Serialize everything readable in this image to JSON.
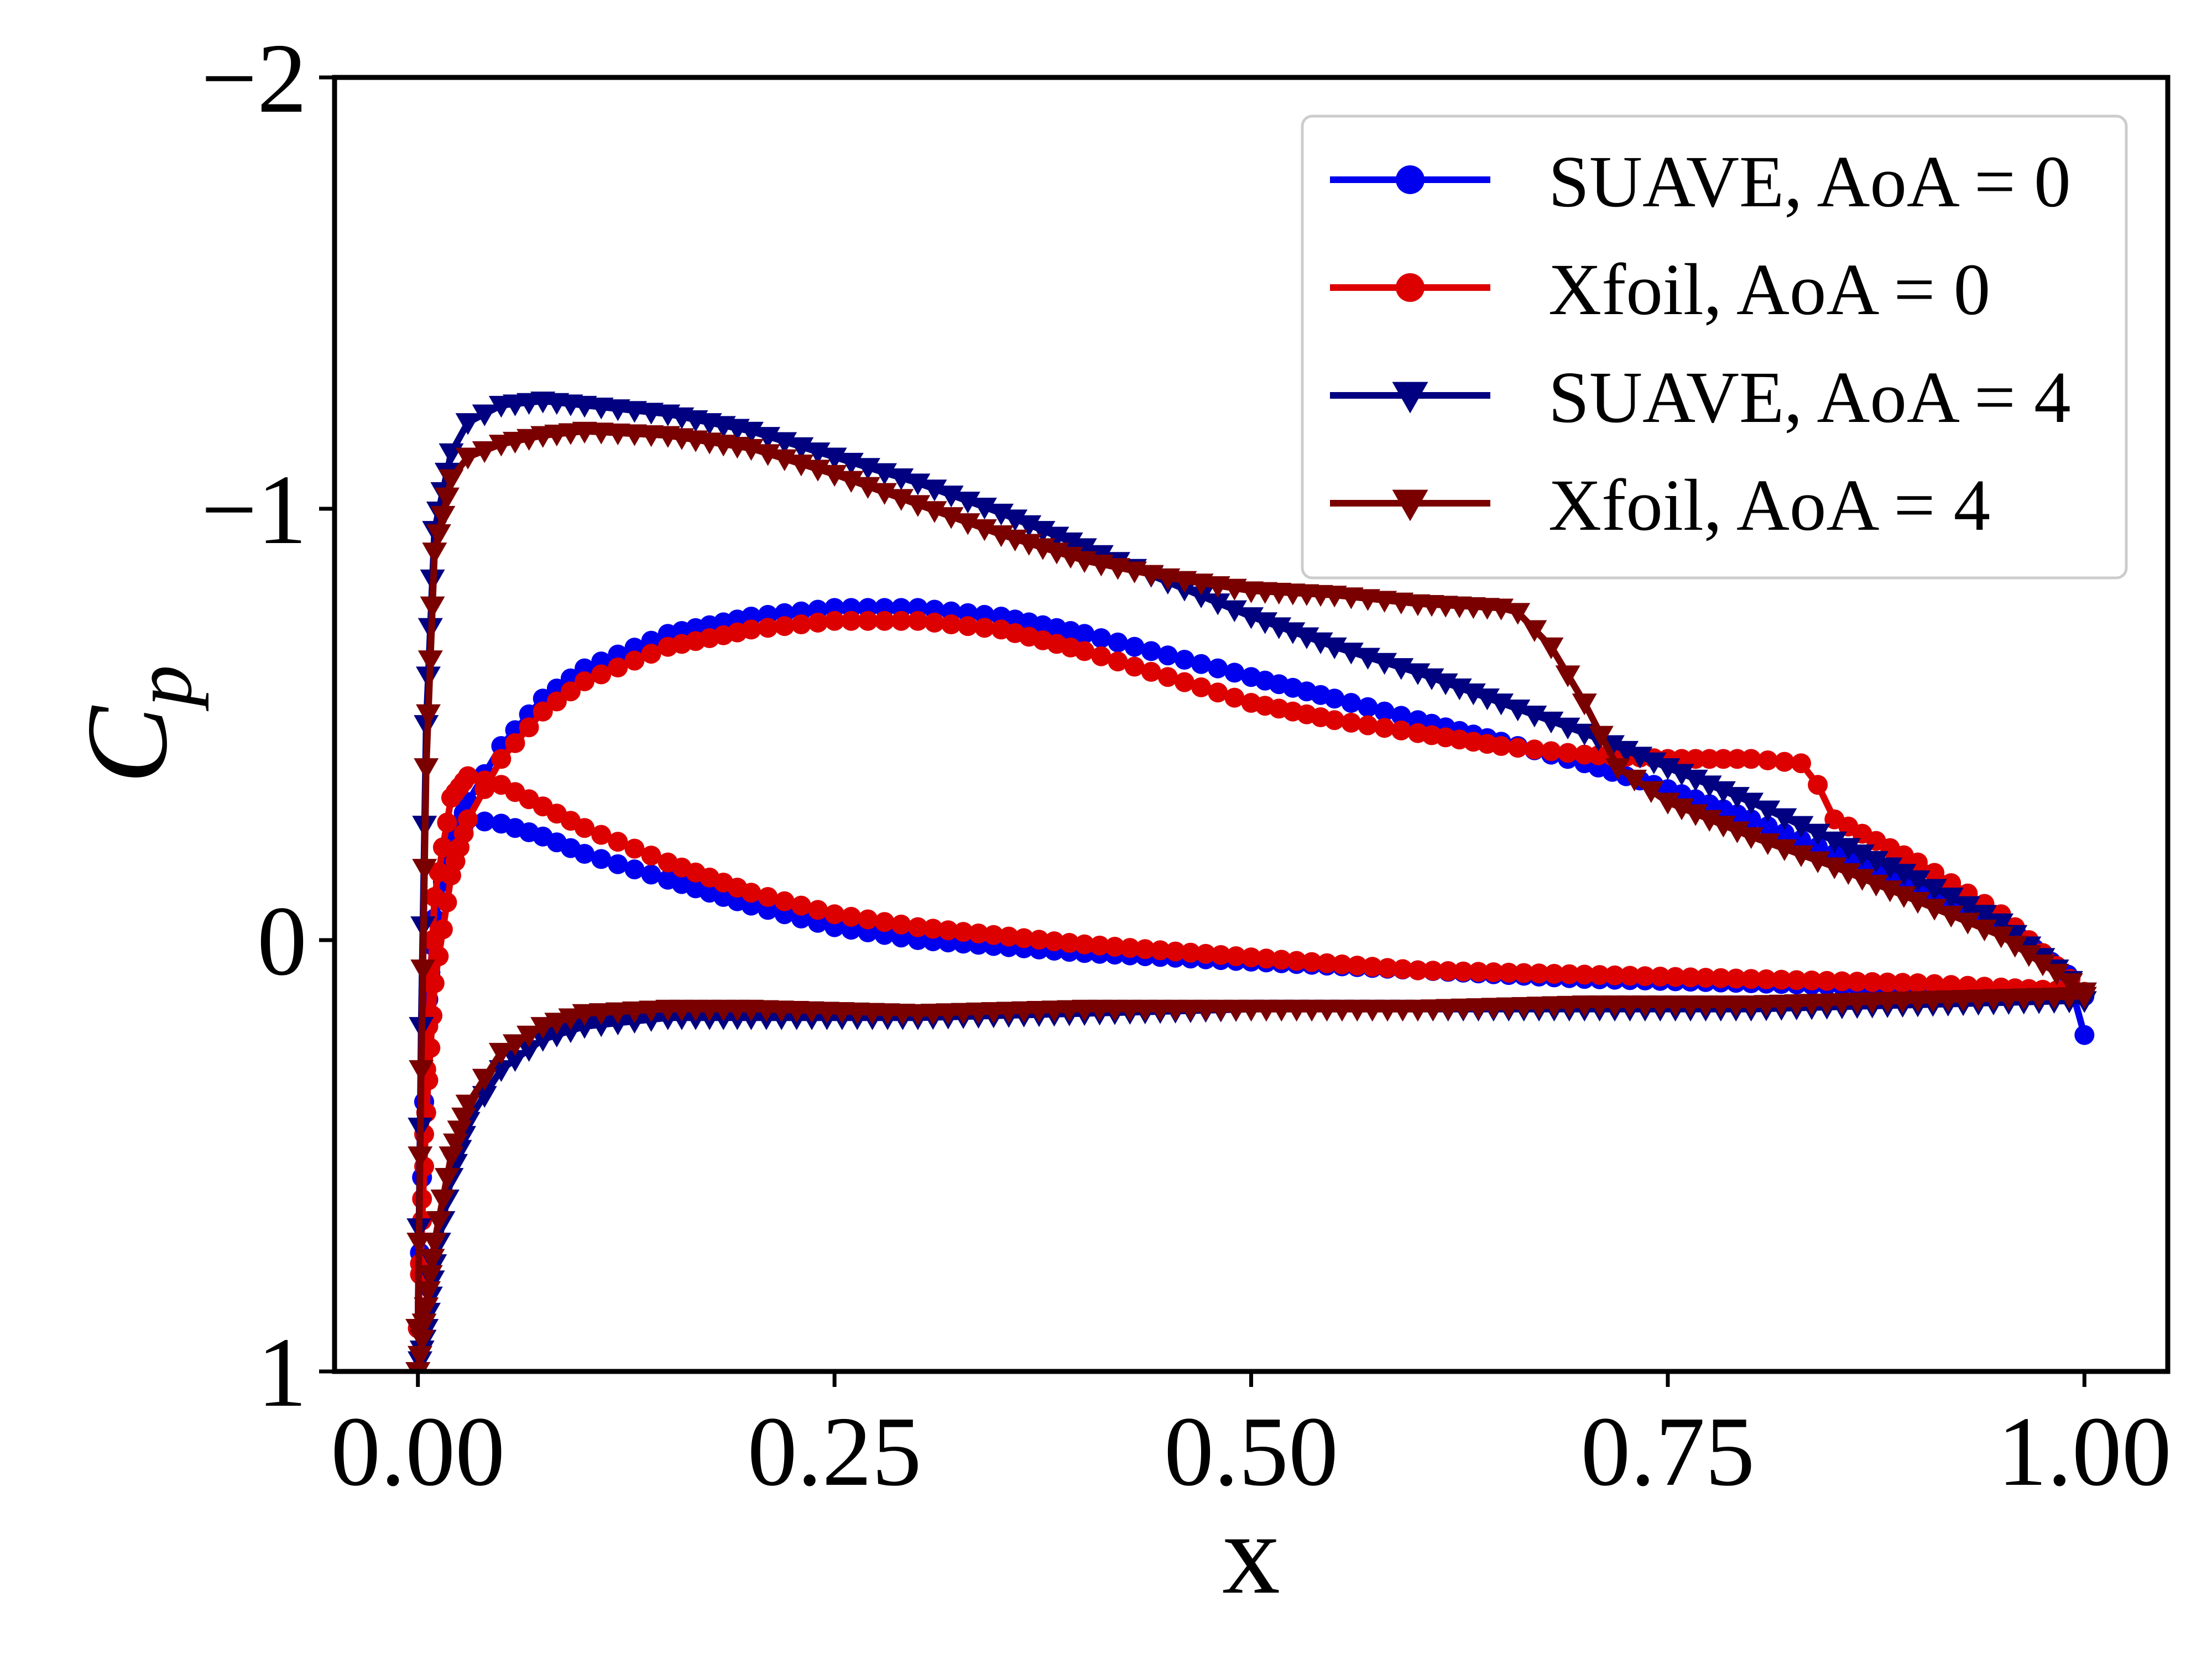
{
  "chart_data": {
    "type": "line",
    "title": "",
    "xlabel": "x",
    "ylabel_main": "C",
    "ylabel_sub": "p",
    "xlim": [
      -0.05,
      1.05
    ],
    "ylim": [
      1,
      -2
    ],
    "y_inverted": true,
    "grid": false,
    "legend_position": "top-right",
    "x_ticks": [
      0.0,
      0.25,
      0.5,
      0.75,
      1.0
    ],
    "x_tick_labels": [
      "0.00",
      "0.25",
      "0.50",
      "0.75",
      "1.00"
    ],
    "y_ticks": [
      -2,
      -1,
      0,
      1
    ],
    "y_tick_labels": [
      "−2",
      "−1",
      "0",
      "1"
    ],
    "series": [
      {
        "name": "SUAVE, AoA = 0",
        "color": "#0000ee",
        "marker": "circle",
        "upper": {
          "x": [
            0.0,
            0.005,
            0.01,
            0.02,
            0.03,
            0.05,
            0.075,
            0.1,
            0.15,
            0.2,
            0.25,
            0.3,
            0.35,
            0.4,
            0.45,
            0.5,
            0.55,
            0.6,
            0.65,
            0.7,
            0.75,
            0.8,
            0.85,
            0.9,
            0.95,
            0.99,
            1.0
          ],
          "y": [
            0.9,
            0.2,
            -0.05,
            -0.22,
            -0.32,
            -0.45,
            -0.56,
            -0.63,
            -0.71,
            -0.75,
            -0.77,
            -0.77,
            -0.75,
            -0.71,
            -0.66,
            -0.61,
            -0.56,
            -0.51,
            -0.46,
            -0.41,
            -0.35,
            -0.28,
            -0.2,
            -0.12,
            -0.04,
            0.08,
            0.22
          ]
        },
        "lower": {
          "x": [
            0.0,
            0.005,
            0.01,
            0.02,
            0.03,
            0.05,
            0.075,
            0.1,
            0.15,
            0.2,
            0.25,
            0.3,
            0.4,
            0.5,
            0.6,
            0.7,
            0.8,
            0.9,
            0.95,
            1.0
          ],
          "y": [
            0.9,
            0.2,
            -0.05,
            -0.22,
            -0.28,
            -0.27,
            -0.24,
            -0.2,
            -0.14,
            -0.08,
            -0.03,
            0.0,
            0.03,
            0.05,
            0.07,
            0.09,
            0.1,
            0.11,
            0.12,
            0.13
          ]
        }
      },
      {
        "name": "Xfoil, AoA = 0",
        "color": "#dd0000",
        "marker": "circle",
        "upper": {
          "x": [
            0.0,
            0.005,
            0.01,
            0.02,
            0.03,
            0.05,
            0.075,
            0.1,
            0.15,
            0.2,
            0.25,
            0.3,
            0.35,
            0.4,
            0.45,
            0.5,
            0.55,
            0.6,
            0.65,
            0.7,
            0.75,
            0.8,
            0.83,
            0.84,
            0.85,
            0.9,
            0.95,
            1.0
          ],
          "y": [
            0.9,
            0.4,
            0.1,
            -0.15,
            -0.28,
            -0.42,
            -0.53,
            -0.6,
            -0.68,
            -0.72,
            -0.74,
            -0.74,
            -0.72,
            -0.67,
            -0.61,
            -0.55,
            -0.51,
            -0.48,
            -0.45,
            -0.43,
            -0.42,
            -0.42,
            -0.41,
            -0.36,
            -0.28,
            -0.18,
            -0.06,
            0.12
          ]
        },
        "lower": {
          "x": [
            0.0,
            0.005,
            0.01,
            0.02,
            0.03,
            0.05,
            0.075,
            0.1,
            0.15,
            0.2,
            0.25,
            0.3,
            0.4,
            0.5,
            0.6,
            0.7,
            0.8,
            0.9,
            0.95,
            1.0
          ],
          "y": [
            0.9,
            0.3,
            -0.1,
            -0.33,
            -0.38,
            -0.36,
            -0.31,
            -0.26,
            -0.18,
            -0.11,
            -0.06,
            -0.03,
            0.01,
            0.04,
            0.07,
            0.08,
            0.09,
            0.1,
            0.11,
            0.12
          ]
        }
      },
      {
        "name": "SUAVE, AoA = 4",
        "color": "#000080",
        "marker": "triangle-down",
        "upper": {
          "x": [
            0.0,
            0.002,
            0.005,
            0.01,
            0.02,
            0.03,
            0.05,
            0.075,
            0.1,
            0.15,
            0.2,
            0.25,
            0.3,
            0.35,
            0.4,
            0.45,
            0.5,
            0.55,
            0.6,
            0.65,
            0.7,
            0.75,
            0.8,
            0.85,
            0.9,
            0.95,
            1.0
          ],
          "y": [
            0.9,
            0.2,
            -0.5,
            -0.95,
            -1.13,
            -1.2,
            -1.24,
            -1.25,
            -1.24,
            -1.22,
            -1.18,
            -1.12,
            -1.06,
            -0.99,
            -0.91,
            -0.83,
            -0.75,
            -0.68,
            -0.62,
            -0.55,
            -0.48,
            -0.4,
            -0.32,
            -0.23,
            -0.14,
            -0.04,
            0.12
          ]
        },
        "lower": {
          "x": [
            0.0,
            0.005,
            0.01,
            0.02,
            0.03,
            0.05,
            0.075,
            0.1,
            0.15,
            0.2,
            0.3,
            0.4,
            0.5,
            0.6,
            0.7,
            0.8,
            0.9,
            1.0
          ],
          "y": [
            1.0,
            0.9,
            0.75,
            0.55,
            0.42,
            0.3,
            0.23,
            0.2,
            0.18,
            0.18,
            0.18,
            0.17,
            0.16,
            0.16,
            0.16,
            0.16,
            0.15,
            0.14
          ]
        }
      },
      {
        "name": "Xfoil, AoA = 4",
        "color": "#7a0000",
        "marker": "triangle-down",
        "upper": {
          "x": [
            0.0,
            0.002,
            0.005,
            0.01,
            0.02,
            0.03,
            0.05,
            0.075,
            0.1,
            0.15,
            0.2,
            0.25,
            0.3,
            0.35,
            0.4,
            0.45,
            0.5,
            0.55,
            0.6,
            0.65,
            0.66,
            0.68,
            0.7,
            0.72,
            0.75,
            0.8,
            0.85,
            0.9,
            0.95,
            1.0
          ],
          "y": [
            0.9,
            0.3,
            -0.4,
            -0.9,
            -1.07,
            -1.12,
            -1.15,
            -1.17,
            -1.18,
            -1.17,
            -1.14,
            -1.08,
            -1.01,
            -0.94,
            -0.88,
            -0.84,
            -0.81,
            -0.8,
            -0.78,
            -0.77,
            -0.76,
            -0.68,
            -0.55,
            -0.4,
            -0.32,
            -0.24,
            -0.17,
            -0.09,
            -0.01,
            0.12
          ]
        },
        "lower": {
          "x": [
            0.0,
            0.005,
            0.01,
            0.02,
            0.03,
            0.05,
            0.075,
            0.1,
            0.15,
            0.2,
            0.3,
            0.4,
            0.5,
            0.6,
            0.7,
            0.8,
            0.9,
            1.0
          ],
          "y": [
            1.0,
            0.85,
            0.7,
            0.5,
            0.38,
            0.26,
            0.2,
            0.17,
            0.16,
            0.16,
            0.17,
            0.16,
            0.16,
            0.16,
            0.15,
            0.15,
            0.14,
            0.13
          ]
        }
      }
    ]
  }
}
